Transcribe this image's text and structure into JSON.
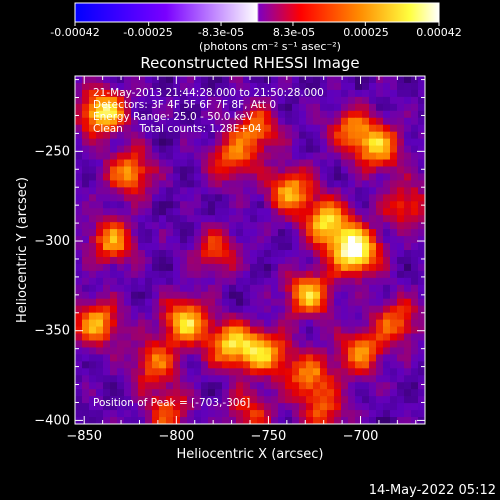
{
  "colorbar": {
    "ticks": [
      "-0.00042",
      "-0.00025",
      "-8.3e-05",
      "8.3e-05",
      "0.00025",
      "0.00042"
    ],
    "tick_values": [
      -0.00042,
      -0.00025,
      -8.3e-05,
      8.3e-05,
      0.00025,
      0.00042
    ],
    "range": [
      -0.00042,
      0.00042
    ],
    "unit_label": "(photons cm⁻² s⁻¹ asec⁻²)",
    "colors": [
      "#0000ff",
      "#7a00ff",
      "#ffffff",
      "#7f00c0",
      "#ff0000",
      "#ff8a00",
      "#ffff40",
      "#ffffff"
    ]
  },
  "title": "Reconstructed RHESSI Image",
  "info": {
    "time_range": "21-May-2013 21:44:28.000 to 21:50:28.000",
    "detectors": "Detectors: 3F 4F 5F 6F 7F 8F, Att 0",
    "energy": "Energy Range: 25.0 - 50.0 keV",
    "method": "Clean     Total counts: 1.28E+04",
    "peak": "Position of Peak = [-703,-306]"
  },
  "footer_date": "14-May-2022 05:12",
  "chart_data": {
    "type": "heatmap",
    "xlabel": "Heliocentric X (arcsec)",
    "ylabel": "Heliocentric Y (arcsec)",
    "xlim": [
      -855,
      -665
    ],
    "ylim": [
      -402,
      -208
    ],
    "xticks": [
      -850,
      -800,
      -750,
      -700
    ],
    "yticks": [
      -400,
      -350,
      -300,
      -250
    ],
    "peak": {
      "x": -703,
      "y": -306
    },
    "sources": [
      {
        "x": -703,
        "y": -306,
        "amp": 1.0
      },
      {
        "x": -718,
        "y": -290,
        "amp": 0.75
      },
      {
        "x": -738,
        "y": -272,
        "amp": 0.65
      },
      {
        "x": -728,
        "y": -330,
        "amp": 0.7
      },
      {
        "x": -757,
        "y": -238,
        "amp": 0.55
      },
      {
        "x": -770,
        "y": -255,
        "amp": 0.5
      },
      {
        "x": -778,
        "y": -306,
        "amp": 0.45
      },
      {
        "x": -840,
        "y": -228,
        "amp": 0.85
      },
      {
        "x": -825,
        "y": -262,
        "amp": 0.6
      },
      {
        "x": -835,
        "y": -300,
        "amp": 0.6
      },
      {
        "x": -843,
        "y": -346,
        "amp": 0.65
      },
      {
        "x": -812,
        "y": -368,
        "amp": 0.5
      },
      {
        "x": -795,
        "y": -345,
        "amp": 0.75
      },
      {
        "x": -770,
        "y": -358,
        "amp": 0.7
      },
      {
        "x": -752,
        "y": -362,
        "amp": 0.65
      },
      {
        "x": -728,
        "y": -375,
        "amp": 0.55
      },
      {
        "x": -700,
        "y": -362,
        "amp": 0.55
      },
      {
        "x": -680,
        "y": -345,
        "amp": 0.5
      },
      {
        "x": -690,
        "y": -248,
        "amp": 0.65
      },
      {
        "x": -705,
        "y": -238,
        "amp": 0.5
      },
      {
        "x": -675,
        "y": -280,
        "amp": 0.45
      },
      {
        "x": -805,
        "y": -395,
        "amp": 0.45
      },
      {
        "x": -760,
        "y": -395,
        "amp": 0.4
      },
      {
        "x": -720,
        "y": -395,
        "amp": 0.45
      }
    ]
  }
}
